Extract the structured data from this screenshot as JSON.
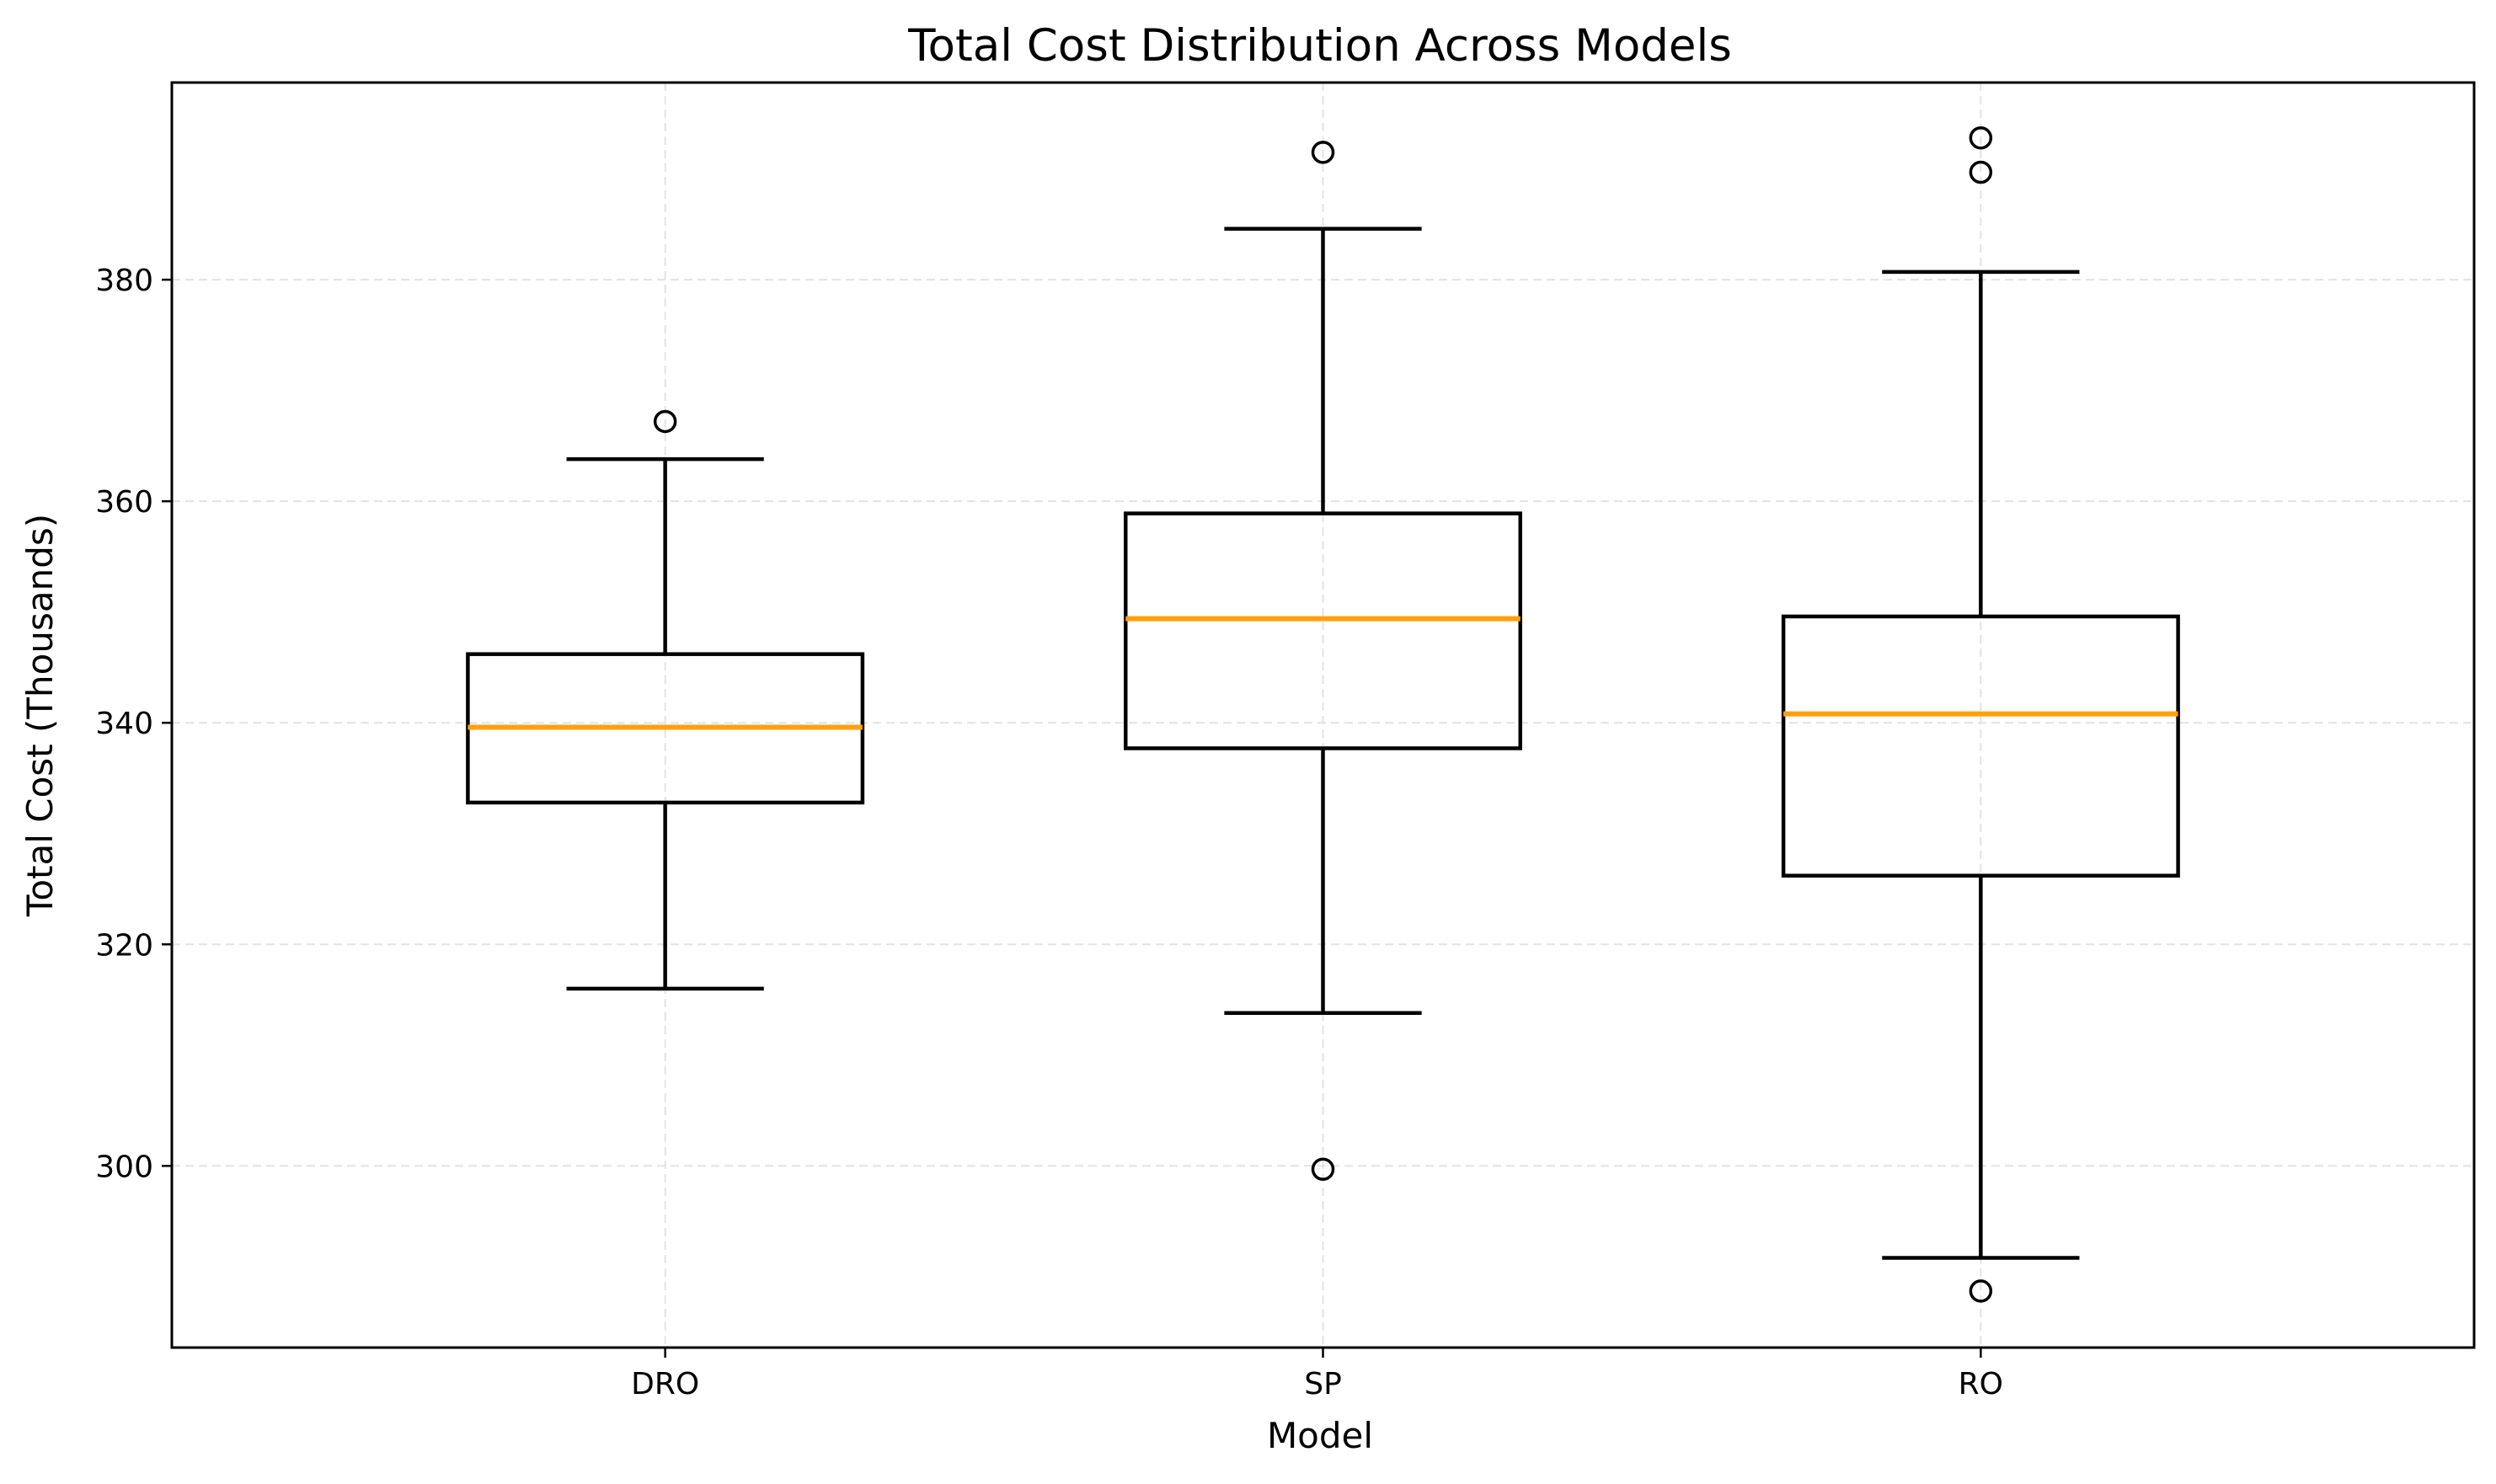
{
  "chart_data": {
    "type": "boxplot",
    "title": "Total Cost Distribution Across Models",
    "xlabel": "Model",
    "ylabel": "Total Cost (Thousands)",
    "categories": [
      "DRO",
      "SP",
      "RO"
    ],
    "ylim": [
      283.6,
      397.8
    ],
    "yticks": [
      300,
      320,
      340,
      360,
      380
    ],
    "grid": true,
    "colors": {
      "box": "#000000",
      "median": "#ff9f0f",
      "grid": "#e3e3e3"
    },
    "boxes": [
      {
        "name": "DRO",
        "whisker_low": 316.0,
        "q1": 332.8,
        "median": 339.6,
        "q3": 346.2,
        "whisker_high": 363.8,
        "outliers": [
          367.2
        ]
      },
      {
        "name": "SP",
        "whisker_low": 313.8,
        "q1": 337.7,
        "median": 349.4,
        "q3": 358.9,
        "whisker_high": 384.6,
        "outliers": [
          391.5,
          299.7
        ]
      },
      {
        "name": "RO",
        "whisker_low": 291.7,
        "q1": 326.2,
        "median": 340.8,
        "q3": 349.6,
        "whisker_high": 380.7,
        "outliers": [
          392.8,
          389.7,
          288.7
        ]
      }
    ]
  }
}
